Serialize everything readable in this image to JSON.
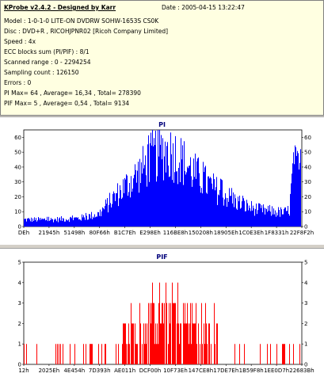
{
  "info": {
    "title": "KProbe v2.4.2 - Designed by Karr",
    "date": "Date : 2005-04-15 13:22:47",
    "lines": [
      "Model : 1-0-1-0 LITE-ON DVDRW SOHW-1653S CS0K",
      "Disc : DVD+R ,  RICOHJPNR02 [Ricoh Company Limited]",
      "Speed : 4x",
      "ECC blocks sum (PI/PIF) : 8/1",
      "Scanned range : 0 - 2294254",
      "Sampling count : 126150",
      "Errors : 0",
      "PI Max= 64 ,  Average= 16,34 ,  Total= 278390",
      "PIF Max= 5 ,  Average= 0,54 ,  Total= 9134"
    ]
  },
  "chart_data": [
    {
      "type": "area",
      "title": "PI",
      "color": "#0000ff",
      "ylim": [
        0,
        65
      ],
      "yticks": [
        0,
        10,
        20,
        30,
        40,
        50,
        60
      ],
      "xticks": [
        "DEh",
        "21945h",
        "51498h",
        "80F66h",
        "B1C7Eh",
        "E298Eh",
        "116BE8h",
        "150208h",
        "18905Eh",
        "1C0E3Eh",
        "1F8331h",
        "22F8F2h"
      ],
      "grid": false,
      "profile_x": [
        0,
        0.03,
        0.1,
        0.2,
        0.27,
        0.32,
        0.37,
        0.42,
        0.47,
        0.51,
        0.55,
        0.6,
        0.65,
        0.7,
        0.75,
        0.8,
        0.85,
        0.9,
        0.94,
        0.96,
        0.97,
        0.98,
        1.0
      ],
      "profile_y": [
        5,
        5,
        5,
        6,
        9,
        20,
        30,
        40,
        52,
        55,
        52,
        42,
        33,
        26,
        20,
        15,
        12,
        11,
        10,
        12,
        38,
        42,
        40
      ]
    },
    {
      "type": "bar",
      "title": "PIF",
      "color": "#ff0000",
      "ylim": [
        0,
        5
      ],
      "yticks": [
        0,
        1,
        2,
        3,
        4,
        5
      ],
      "xticks": [
        "12h",
        "2025Eh",
        "4E454h",
        "7D393h",
        "AE011h",
        "DCF00h",
        "10F73Eh",
        "147CE8h",
        "17DE7Eh",
        "1B59F8h",
        "1EE0D7h",
        "22683Bh"
      ],
      "grid": false,
      "profile_x": [
        0,
        0.1,
        0.25,
        0.33,
        0.4,
        0.45,
        0.5,
        0.55,
        0.6,
        0.65,
        0.72,
        0.8,
        0.9,
        1.0
      ],
      "profile_y": [
        0.3,
        0.4,
        0.6,
        1.0,
        1.6,
        2.2,
        2.6,
        2.6,
        2.2,
        1.6,
        1.1,
        0.7,
        0.6,
        0.5
      ]
    }
  ]
}
